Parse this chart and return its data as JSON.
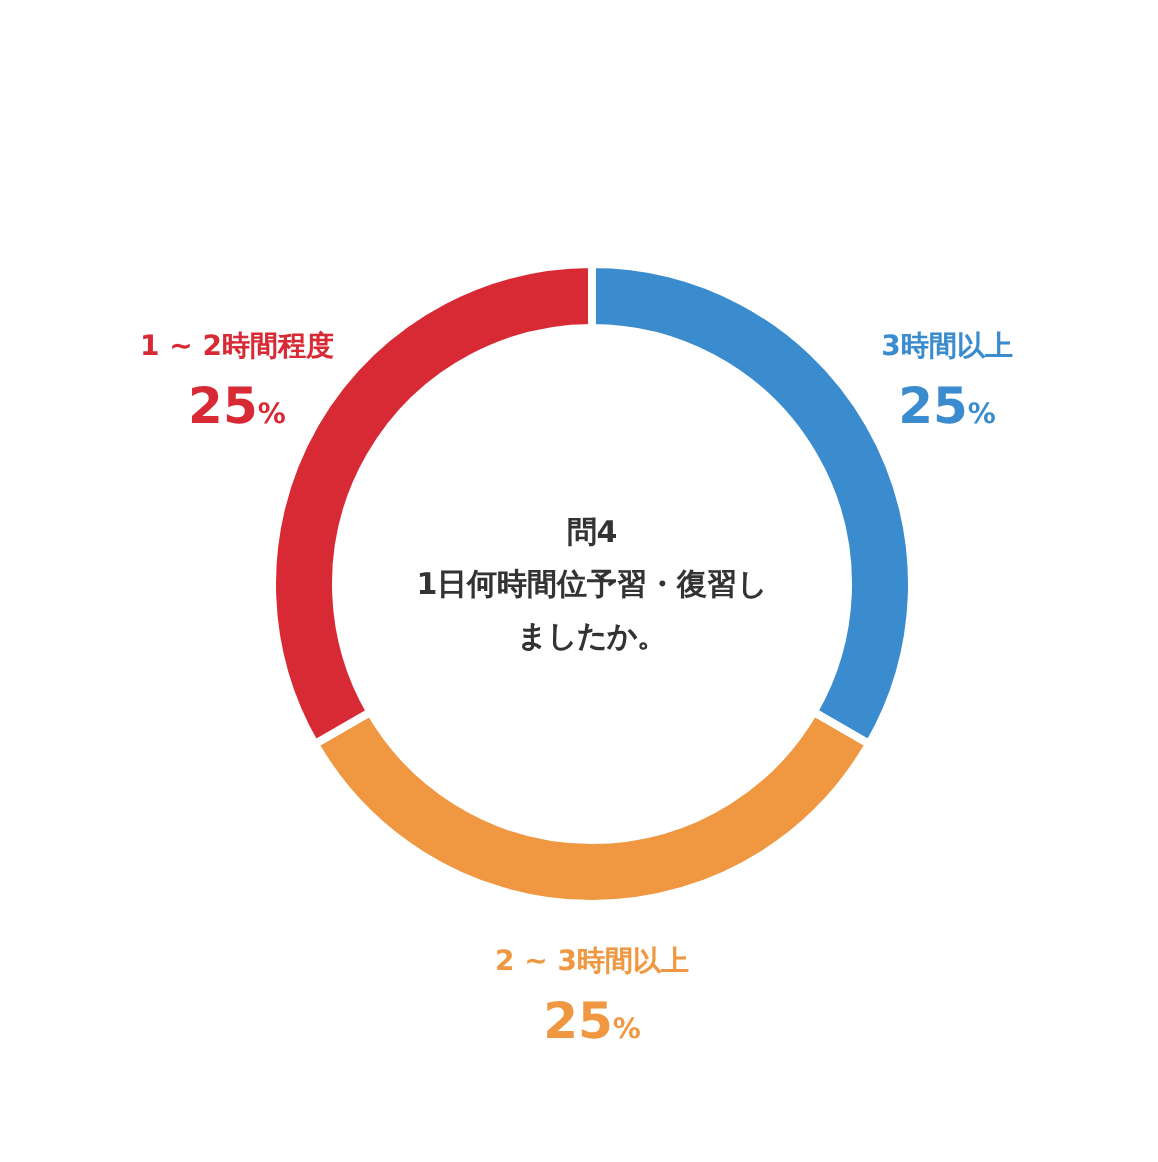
{
  "chart_data": {
    "type": "donut",
    "title": "問4",
    "subtitle": "1日何時間位予習・復習しましたか。",
    "categories": [
      "3時間以上",
      "2 ~ 3時間以上",
      "1 ~ 2時間程度"
    ],
    "values": [
      25,
      25,
      25
    ],
    "value_labels": [
      "25%",
      "25%",
      "25%"
    ],
    "colors": [
      "#3a8ccf",
      "#f09741",
      "#d82a35"
    ]
  }
}
